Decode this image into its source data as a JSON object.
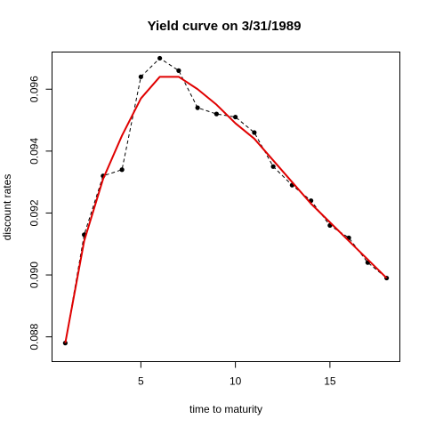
{
  "chart_data": {
    "type": "line",
    "title": "Yield curve on 3/31/1989",
    "xlabel": "time to maturity",
    "ylabel": "discount rates",
    "xlim": [
      0.3,
      18.7
    ],
    "ylim": [
      0.0872,
      0.0972
    ],
    "x_ticks": [
      5,
      10,
      15
    ],
    "y_ticks": [
      0.088,
      0.09,
      0.092,
      0.094,
      0.096
    ],
    "grid": false,
    "series": [
      {
        "style": "points-dashed",
        "color": "#000000",
        "x": [
          1,
          2,
          3,
          4,
          5,
          6,
          7,
          8,
          9,
          10,
          11,
          12,
          13,
          14,
          15,
          16,
          17,
          18
        ],
        "y": [
          0.0878,
          0.0913,
          0.0932,
          0.0934,
          0.0964,
          0.097,
          0.0966,
          0.0954,
          0.0952,
          0.0951,
          0.0946,
          0.0935,
          0.0929,
          0.0924,
          0.0916,
          0.0912,
          0.0904,
          0.0899
        ]
      },
      {
        "style": "line",
        "color": "#e00000",
        "x": [
          1,
          2,
          3,
          4,
          5,
          6,
          7,
          8,
          9,
          10,
          11,
          12,
          13,
          14,
          15,
          16,
          17,
          18
        ],
        "y": [
          0.0878,
          0.0911,
          0.0931,
          0.0945,
          0.0957,
          0.0964,
          0.0964,
          0.096,
          0.0955,
          0.0949,
          0.0944,
          0.0937,
          0.093,
          0.0923,
          0.0917,
          0.0911,
          0.0905,
          0.0899
        ]
      }
    ]
  }
}
